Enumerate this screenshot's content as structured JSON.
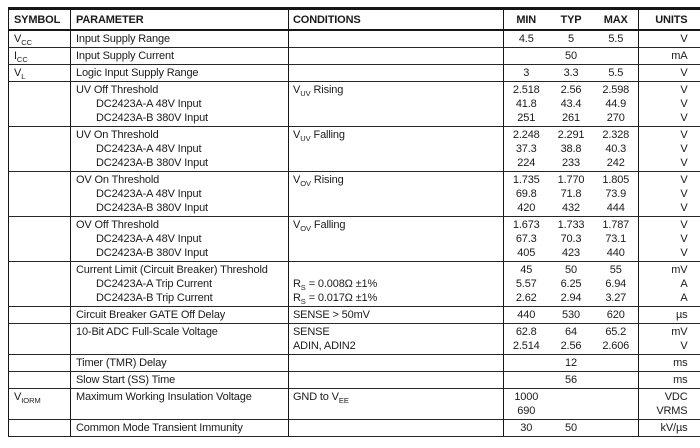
{
  "colors": {
    "text": "#1b1b1b",
    "border": "#161616",
    "background": "#ffffff"
  },
  "table": {
    "columns": [
      {
        "key": "symbol",
        "label": "SYMBOL"
      },
      {
        "key": "parameter",
        "label": "PARAMETER"
      },
      {
        "key": "conditions",
        "label": "CONDITIONS"
      },
      {
        "key": "min",
        "label": "MIN"
      },
      {
        "key": "typ",
        "label": "TYP"
      },
      {
        "key": "max",
        "label": "MAX"
      },
      {
        "key": "units",
        "label": "UNITS"
      }
    ],
    "rows": [
      {
        "symbol": "V~CC~",
        "parameter": [
          {
            "text": "Input Supply Range",
            "indent": false
          }
        ],
        "conditions": [],
        "min": [
          "4.5"
        ],
        "typ": [
          "5"
        ],
        "max": [
          "5.5"
        ],
        "units": [
          "V"
        ]
      },
      {
        "symbol": "I~CC~",
        "parameter": [
          {
            "text": "Input Supply Current",
            "indent": false
          }
        ],
        "conditions": [],
        "min": [],
        "typ": [
          "50"
        ],
        "max": [],
        "units": [
          "mA"
        ]
      },
      {
        "symbol": "V~L~",
        "parameter": [
          {
            "text": "Logic Input Supply Range",
            "indent": false
          }
        ],
        "conditions": [],
        "min": [
          "3"
        ],
        "typ": [
          "3.3"
        ],
        "max": [
          "5.5"
        ],
        "units": [
          "V"
        ]
      },
      {
        "symbol": "",
        "parameter": [
          {
            "text": "UV Off Threshold",
            "indent": false
          },
          {
            "text": "DC2423A-A 48V Input",
            "indent": true
          },
          {
            "text": "DC2423A-B 380V Input",
            "indent": true
          }
        ],
        "conditions": [
          "V~UV~ Rising"
        ],
        "min": [
          "2.518",
          "41.8",
          "251"
        ],
        "typ": [
          "2.56",
          "43.4",
          "261"
        ],
        "max": [
          "2.598",
          "44.9",
          "270"
        ],
        "units": [
          "V",
          "V",
          "V"
        ]
      },
      {
        "symbol": "",
        "parameter": [
          {
            "text": "UV On Threshold",
            "indent": false
          },
          {
            "text": "DC2423A-A 48V Input",
            "indent": true
          },
          {
            "text": "DC2423A-B 380V Input",
            "indent": true
          }
        ],
        "conditions": [
          "V~UV~ Falling"
        ],
        "min": [
          "2.248",
          "37.3",
          "224"
        ],
        "typ": [
          "2.291",
          "38.8",
          "233"
        ],
        "max": [
          "2.328",
          "40.3",
          "242"
        ],
        "units": [
          "V",
          "V",
          "V"
        ]
      },
      {
        "symbol": "",
        "parameter": [
          {
            "text": "OV On Threshold",
            "indent": false
          },
          {
            "text": "DC2423A-A 48V Input",
            "indent": true
          },
          {
            "text": "DC2423A-B 380V Input",
            "indent": true
          }
        ],
        "conditions": [
          "V~OV~ Rising"
        ],
        "min": [
          "1.735",
          "69.8",
          "420"
        ],
        "typ": [
          "1.770",
          "71.8",
          "432"
        ],
        "max": [
          "1.805",
          "73.9",
          "444"
        ],
        "units": [
          "V",
          "V",
          "V"
        ]
      },
      {
        "symbol": "",
        "parameter": [
          {
            "text": "OV Off Threshold",
            "indent": false
          },
          {
            "text": "DC2423A-A 48V Input",
            "indent": true
          },
          {
            "text": "DC2423A-B 380V Input",
            "indent": true
          }
        ],
        "conditions": [
          "V~OV~ Falling"
        ],
        "min": [
          "1.673",
          "67.3",
          "405"
        ],
        "typ": [
          "1.733",
          "70.3",
          "423"
        ],
        "max": [
          "1.787",
          "73.1",
          "440"
        ],
        "units": [
          "V",
          "V",
          "V"
        ]
      },
      {
        "symbol": "",
        "parameter": [
          {
            "text": "Current Limit (Circuit Breaker) Threshold",
            "indent": false
          },
          {
            "text": "DC2423A-A Trip Current",
            "indent": true
          },
          {
            "text": "DC2423A-B Trip Current",
            "indent": true
          }
        ],
        "conditions": [
          "",
          "R~S~ = 0.008Ω ±1%",
          "R~S~ = 0.017Ω ±1%"
        ],
        "min": [
          "45",
          "5.57",
          "2.62"
        ],
        "typ": [
          "50",
          "6.25",
          "2.94"
        ],
        "max": [
          "55",
          "6.94",
          "3.27"
        ],
        "units": [
          "mV",
          "A",
          "A"
        ]
      },
      {
        "symbol": "",
        "parameter": [
          {
            "text": "Circuit Breaker GATE Off Delay",
            "indent": false
          }
        ],
        "conditions": [
          "SENSE > 50mV"
        ],
        "min": [
          "440"
        ],
        "typ": [
          "530"
        ],
        "max": [
          "620"
        ],
        "units": [
          "µs"
        ]
      },
      {
        "symbol": "",
        "parameter": [
          {
            "text": "10-Bit ADC Full-Scale Voltage",
            "indent": false
          }
        ],
        "conditions": [
          "SENSE",
          "ADIN, ADIN2"
        ],
        "min": [
          "62.8",
          "2.514"
        ],
        "typ": [
          "64",
          "2.56"
        ],
        "max": [
          "65.2",
          "2.606"
        ],
        "units": [
          "mV",
          "V"
        ]
      },
      {
        "symbol": "",
        "parameter": [
          {
            "text": "Timer (TMR) Delay",
            "indent": false
          }
        ],
        "conditions": [],
        "min": [],
        "typ": [
          "12"
        ],
        "max": [],
        "units": [
          "ms"
        ]
      },
      {
        "symbol": "",
        "parameter": [
          {
            "text": "Slow Start (SS) Time",
            "indent": false
          }
        ],
        "conditions": [],
        "min": [],
        "typ": [
          "56"
        ],
        "max": [],
        "units": [
          "ms"
        ]
      },
      {
        "symbol": "V~IORM~",
        "parameter": [
          {
            "text": "Maximum Working Insulation Voltage",
            "indent": false
          }
        ],
        "conditions": [
          "GND to V~EE~"
        ],
        "min": [
          "1000",
          "690"
        ],
        "typ": [],
        "max": [],
        "units": [
          "VDC",
          "VRMS"
        ]
      },
      {
        "symbol": "",
        "parameter": [
          {
            "text": "Common Mode Transient Immunity",
            "indent": false
          }
        ],
        "conditions": [],
        "min": [
          "30"
        ],
        "typ": [
          "50"
        ],
        "max": [],
        "units": [
          "kV/µs"
        ]
      }
    ]
  }
}
